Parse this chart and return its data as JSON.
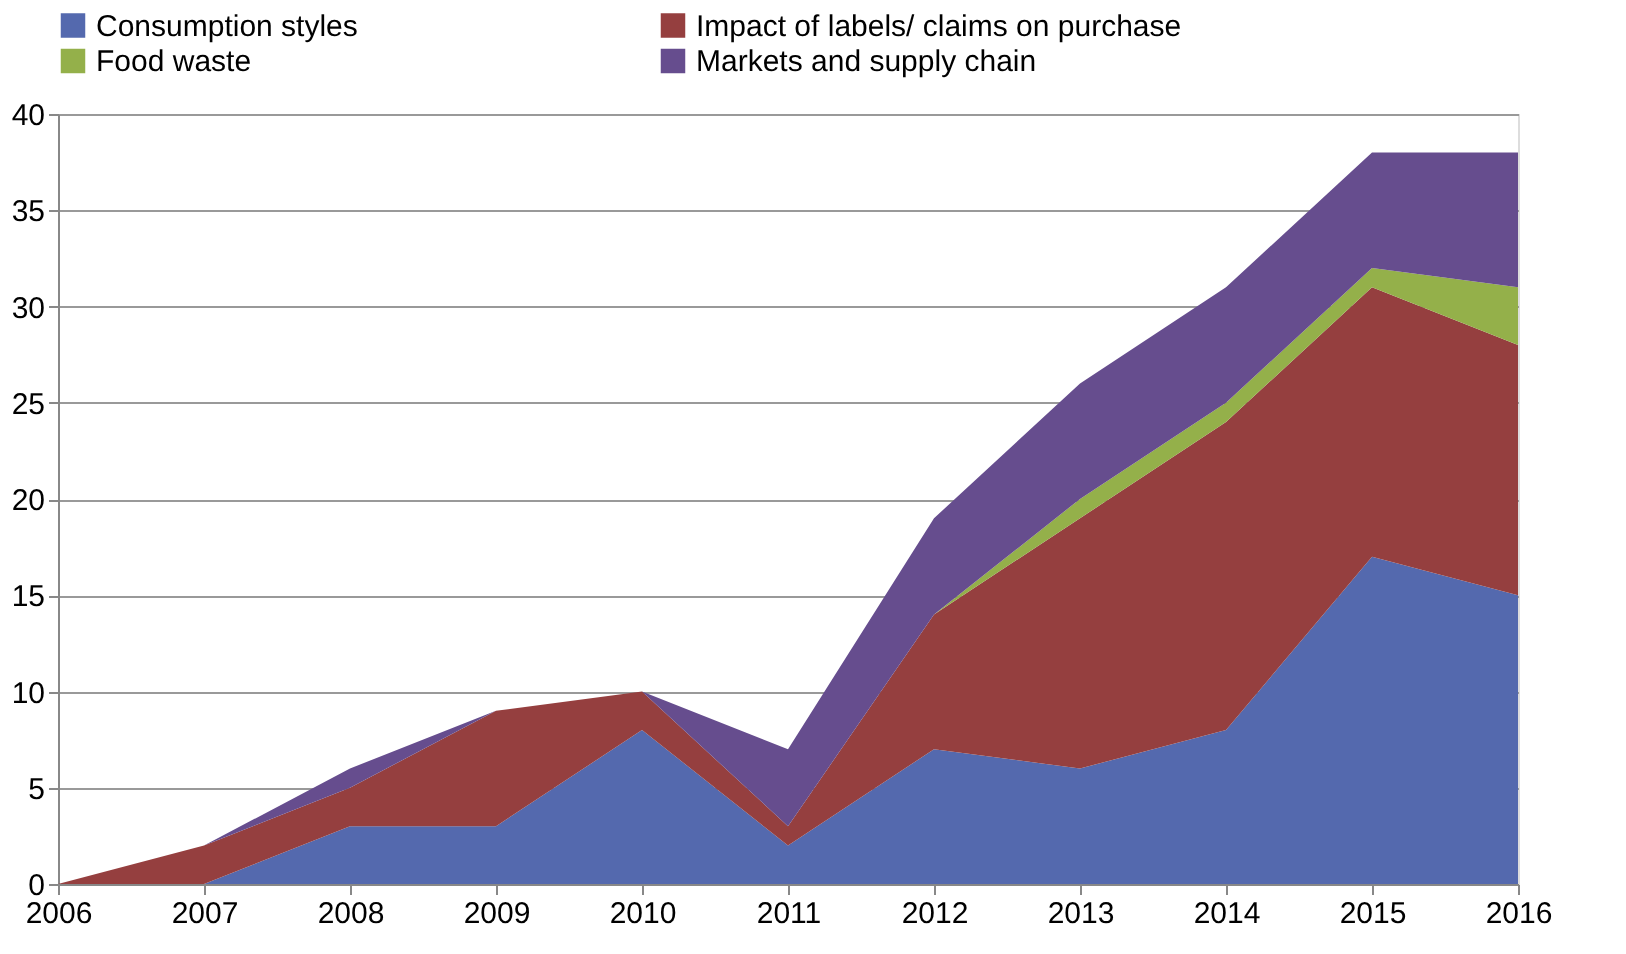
{
  "chart_data": {
    "type": "area",
    "stacked": true,
    "x": [
      2006,
      2007,
      2008,
      2009,
      2010,
      2011,
      2012,
      2013,
      2014,
      2015,
      2016
    ],
    "series": [
      {
        "name": "Consumption styles",
        "color": "#5469ae",
        "values": [
          0,
          0,
          3,
          3,
          8,
          2,
          7,
          6,
          8,
          17,
          15
        ]
      },
      {
        "name": "Impact of labels/ claims on purchase",
        "color": "#953f3f",
        "values": [
          0,
          2,
          2,
          6,
          2,
          1,
          7,
          13,
          16,
          14,
          13
        ]
      },
      {
        "name": "Food waste",
        "color": "#94b04a",
        "values": [
          0,
          0,
          0,
          0,
          0,
          0,
          0,
          1,
          1,
          1,
          3
        ]
      },
      {
        "name": "Markets and supply chain",
        "color": "#664d8e",
        "values": [
          0,
          0,
          1,
          0,
          0,
          4,
          5,
          6,
          6,
          6,
          7
        ]
      }
    ],
    "xlim": [
      2006,
      2016
    ],
    "xticks": [
      2006,
      2007,
      2008,
      2009,
      2010,
      2011,
      2012,
      2013,
      2014,
      2015,
      2016
    ],
    "ylim": [
      0,
      40
    ],
    "yticks": [
      0,
      5,
      10,
      15,
      20,
      25,
      30,
      35,
      40
    ],
    "grid": "y",
    "legend": "top"
  }
}
